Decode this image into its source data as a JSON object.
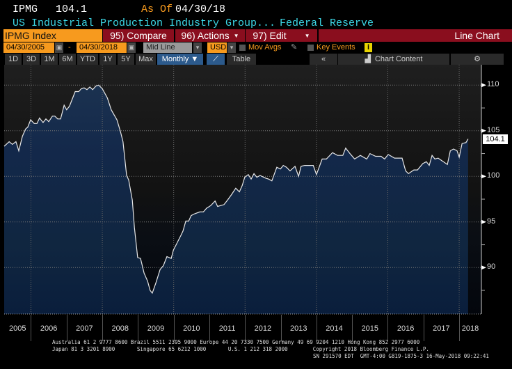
{
  "header": {
    "ticker": "IPMG",
    "last": "104.1",
    "as_of_label": "As Of",
    "as_of_date": "04/30/18",
    "description": "US Industrial Production Industry Group...",
    "source": "Federal Reserve"
  },
  "menu": {
    "security": "IPMG Index",
    "compare": "95) Compare",
    "actions": "96) Actions",
    "edit": "97) Edit",
    "chart_type": "Line Chart"
  },
  "controls": {
    "start_date": "04/30/2005",
    "dash": "-",
    "end_date": "04/30/2018",
    "line_mode": "Mid Line",
    "currency": "USD",
    "mov_avgs": "Mov Avgs",
    "key_events": "Key Events",
    "info": "i"
  },
  "ranges": [
    "1D",
    "3D",
    "1M",
    "6M",
    "YTD",
    "1Y",
    "5Y",
    "Max"
  ],
  "periodicity": "Monthly ▼",
  "table_label": "Table",
  "collapse": "«",
  "chart_content": "Chart Content",
  "settings": "⚙",
  "colors": {
    "orange": "#f79a1e",
    "menu_red": "#8a0e1e",
    "cyan": "#3cd7e6",
    "line": "#e8e8e8"
  },
  "chart_data": {
    "type": "area",
    "x_ticks": [
      "2005",
      "2006",
      "2007",
      "2008",
      "2009",
      "2010",
      "2011",
      "2012",
      "2013",
      "2014",
      "2015",
      "2016",
      "2017",
      "2018"
    ],
    "y_ticks": [
      "110",
      "105",
      "100",
      "95",
      "90"
    ],
    "ylim": [
      85,
      112
    ],
    "last_value_label": "104.1",
    "x": [
      2005.25,
      2005.39,
      2005.48,
      2005.58,
      2005.66,
      2005.76,
      2005.85,
      2005.91,
      2005.99,
      2006.09,
      2006.17,
      2006.24,
      2006.34,
      2006.42,
      2006.5,
      2006.6,
      2006.67,
      2006.75,
      2006.83,
      2006.93,
      2007.0,
      2007.08,
      2007.24,
      2007.34,
      2007.41,
      2007.49,
      2007.57,
      2007.65,
      2007.73,
      2007.82,
      2007.9,
      2008.0,
      2008.14,
      2008.25,
      2008.41,
      2008.51,
      2008.58,
      2008.68,
      2008.74,
      2008.84,
      2008.9,
      2008.99,
      2009.07,
      2009.17,
      2009.27,
      2009.34,
      2009.4,
      2009.5,
      2009.62,
      2009.71,
      2009.81,
      2009.93,
      2009.99,
      2010.2,
      2010.26,
      2010.34,
      2010.42,
      2010.49,
      2010.59,
      2010.73,
      2010.83,
      2010.92,
      2011.04,
      2011.16,
      2011.23,
      2011.41,
      2011.51,
      2011.62,
      2011.74,
      2011.84,
      2011.92,
      2011.99,
      2012.09,
      2012.17,
      2012.25,
      2012.33,
      2012.42,
      2012.58,
      2012.66,
      2012.75,
      2012.89,
      2012.99,
      2013.07,
      2013.16,
      2013.26,
      2013.4,
      2013.5,
      2013.57,
      2013.67,
      2013.91,
      2014.0,
      2014.16,
      2014.28,
      2014.45,
      2014.59,
      2014.67,
      2014.74,
      2014.82,
      2014.94,
      2015.07,
      2015.23,
      2015.41,
      2015.5,
      2015.66,
      2015.81,
      2015.91,
      2016.01,
      2016.19,
      2016.4,
      2016.5,
      2016.58,
      2016.73,
      2016.83,
      2016.98,
      2017.08,
      2017.16,
      2017.24,
      2017.32,
      2017.41,
      2017.67,
      2017.75,
      2017.84,
      2017.94,
      2018.0,
      2018.08,
      2018.19,
      2018.25
    ],
    "values": [
      103.3,
      103.8,
      103.5,
      103.8,
      102.8,
      104.4,
      105.2,
      105.4,
      106.2,
      105.8,
      105.8,
      106.4,
      105.9,
      106.3,
      106.0,
      106.6,
      106.6,
      106.3,
      106.3,
      107.8,
      107.3,
      107.7,
      109.3,
      109.3,
      109.6,
      109.7,
      109.5,
      109.8,
      109.5,
      109.9,
      110.0,
      109.6,
      108.6,
      107.3,
      106.2,
      104.9,
      103.8,
      100.1,
      99.6,
      97.4,
      94.4,
      91.1,
      91.0,
      89.4,
      88.5,
      87.5,
      87.2,
      88.3,
      89.8,
      90.2,
      91.2,
      91.0,
      91.9,
      93.5,
      94.0,
      95.1,
      95.1,
      95.7,
      95.9,
      96.1,
      96.1,
      96.5,
      96.8,
      97.3,
      96.7,
      96.9,
      97.4,
      98.0,
      98.7,
      98.3,
      99.0,
      99.9,
      100.2,
      99.7,
      100.3,
      99.9,
      100.1,
      99.8,
      99.7,
      99.5,
      101.0,
      100.8,
      101.2,
      101.0,
      100.6,
      101.1,
      100.0,
      101.1,
      101.2,
      101.2,
      100.2,
      101.9,
      101.9,
      102.6,
      102.3,
      102.3,
      102.3,
      103.1,
      102.5,
      101.9,
      102.3,
      101.9,
      102.5,
      102.2,
      102.2,
      101.9,
      102.4,
      102.0,
      102.0,
      100.6,
      100.3,
      100.7,
      100.7,
      101.4,
      101.6,
      101.2,
      102.3,
      101.9,
      102.0,
      101.3,
      102.8,
      103.0,
      102.8,
      102.1,
      103.6,
      103.7,
      104.1
    ]
  },
  "footer": {
    "line1": "Australia 61 2 9777 8600 Brazil 5511 2395 9000 Europe 44 20 7330 7500 Germany 49 69 9204 1210 Hong Kong 852 2977 6000",
    "line2": "Japan 81 3 3201 8900       Singapore 65 6212 1000       U.S. 1 212 318 2000        Copyright 2018 Bloomberg Finance L.P.",
    "line3": "SN 291570 EDT  GMT-4:00 G819-1875-3 16-May-2018 09:22:41"
  }
}
